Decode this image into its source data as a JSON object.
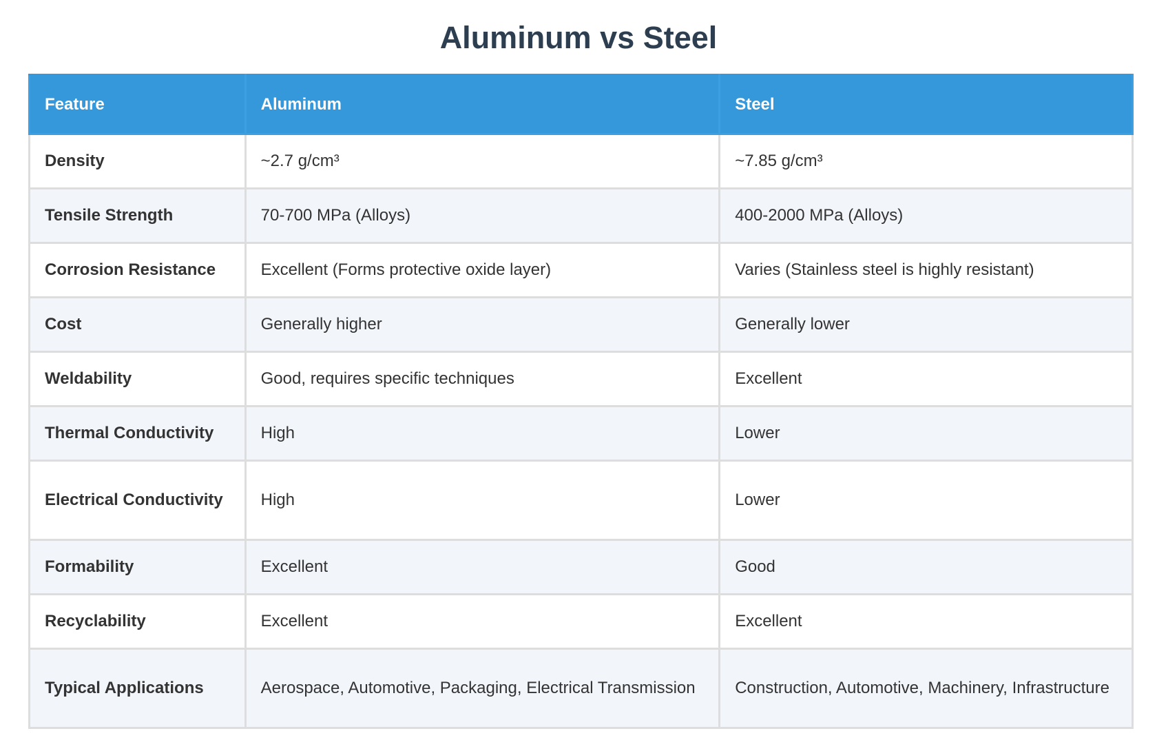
{
  "title": "Aluminum vs Steel",
  "table": {
    "headers": [
      "Feature",
      "Aluminum",
      "Steel"
    ],
    "rows": [
      {
        "feature": "Density",
        "aluminum": "~2.7 g/cm³",
        "steel": "~7.85 g/cm³"
      },
      {
        "feature": "Tensile Strength",
        "aluminum": "70-700 MPa (Alloys)",
        "steel": "400-2000 MPa (Alloys)"
      },
      {
        "feature": "Corrosion Resistance",
        "aluminum": "Excellent (Forms protective oxide layer)",
        "steel": "Varies (Stainless steel is highly resistant)"
      },
      {
        "feature": "Cost",
        "aluminum": "Generally higher",
        "steel": "Generally lower"
      },
      {
        "feature": "Weldability",
        "aluminum": "Good, requires specific techniques",
        "steel": "Excellent"
      },
      {
        "feature": "Thermal Conductivity",
        "aluminum": "High",
        "steel": "Lower"
      },
      {
        "feature": "Electrical Conductivity",
        "aluminum": "High",
        "steel": "Lower"
      },
      {
        "feature": "Formability",
        "aluminum": "Excellent",
        "steel": "Good"
      },
      {
        "feature": "Recyclability",
        "aluminum": "Excellent",
        "steel": "Excellent"
      },
      {
        "feature": "Typical Applications",
        "aluminum": "Aerospace, Automotive, Packaging, Electrical Transmission",
        "steel": "Construction, Automotive, Machinery, Infrastructure"
      }
    ]
  },
  "colors": {
    "header_bg": "#3498db",
    "header_text": "#ffffff",
    "title_text": "#2c3e50",
    "row_alt_bg": "#f2f5fa",
    "border": "#dddddd"
  }
}
